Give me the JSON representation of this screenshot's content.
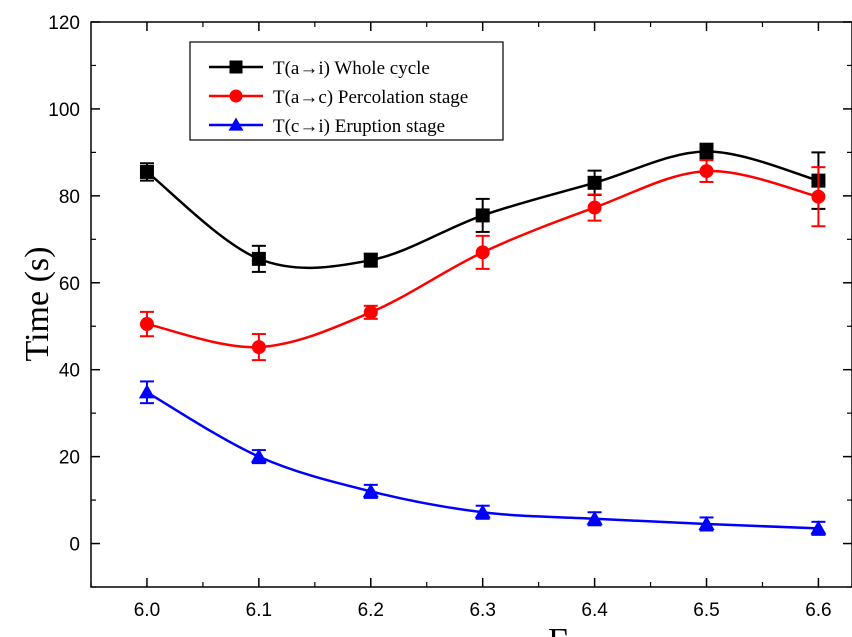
{
  "chart_data": {
    "type": "line",
    "ylabel": "Time (s)",
    "xlabel": "Γ",
    "xlim": [
      5.95,
      6.63
    ],
    "ylim": [
      -10,
      120
    ],
    "x": [
      6.0,
      6.1,
      6.2,
      6.3,
      6.4,
      6.5,
      6.6
    ],
    "x_ticks": [
      6.0,
      6.1,
      6.2,
      6.3,
      6.4,
      6.5,
      6.6
    ],
    "x_tick_labels": [
      "6.0",
      "6.1",
      "6.2",
      "6.3",
      "6.4",
      "6.5",
      "6.6"
    ],
    "y_ticks": [
      0,
      20,
      40,
      60,
      80,
      100,
      120
    ],
    "y_tick_labels": [
      "0",
      "20",
      "40",
      "60",
      "80",
      "100",
      "120"
    ],
    "grid": false,
    "legend_position": "top-left",
    "series": [
      {
        "name": "T(a→i) Whole cycle",
        "color": "#000000",
        "marker": "square",
        "values": [
          85.5,
          65.5,
          65.2,
          75.5,
          83.0,
          90.2,
          83.5
        ],
        "errors": [
          2.0,
          3.0,
          1.5,
          3.8,
          2.8,
          1.8,
          6.5
        ]
      },
      {
        "name": "T(a→c) Percolation stage",
        "color": "#ff0000",
        "marker": "circle",
        "values": [
          50.5,
          45.2,
          53.2,
          67.0,
          77.3,
          85.7,
          79.8
        ],
        "errors": [
          2.8,
          3.0,
          1.5,
          3.8,
          3.0,
          2.5,
          6.8
        ]
      },
      {
        "name": "T(c→i)  Eruption stage",
        "color": "#0000ff",
        "marker": "triangle",
        "values": [
          34.8,
          20.0,
          12.0,
          7.2,
          5.7,
          4.5,
          3.5
        ],
        "errors": [
          2.5,
          1.5,
          1.5,
          1.5,
          1.5,
          1.5,
          1.5
        ]
      }
    ]
  }
}
